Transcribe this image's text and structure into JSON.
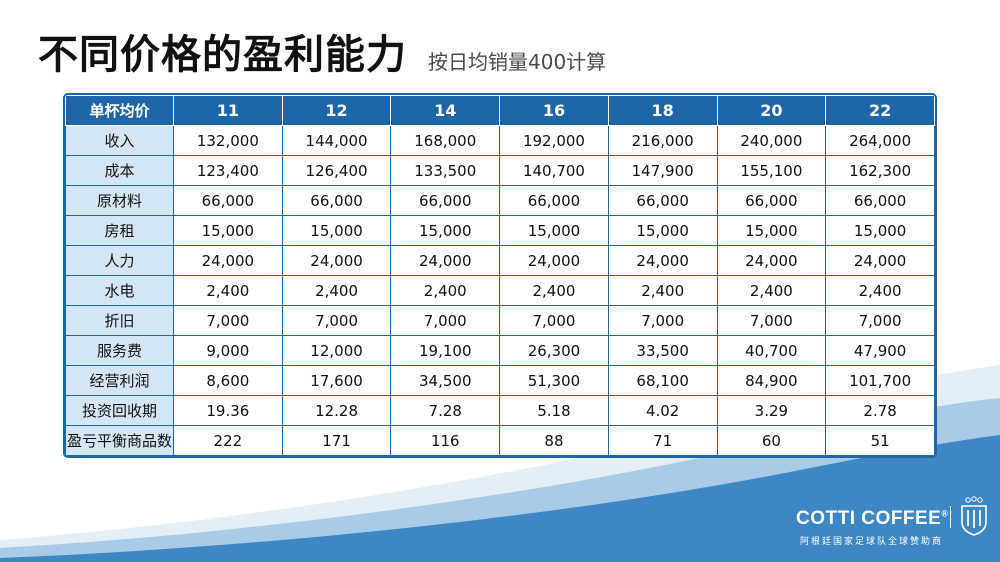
{
  "title": "不同价格的盈利能力",
  "subtitle": "按日均销量400计算",
  "table": {
    "corner": "单杯均价",
    "columns": [
      "11",
      "12",
      "14",
      "16",
      "18",
      "20",
      "22"
    ],
    "rows": [
      {
        "label": "收入",
        "values": [
          "132,000",
          "144,000",
          "168,000",
          "192,000",
          "216,000",
          "240,000",
          "264,000"
        ]
      },
      {
        "label": "成本",
        "values": [
          "123,400",
          "126,400",
          "133,500",
          "140,700",
          "147,900",
          "155,100",
          "162,300"
        ]
      },
      {
        "label": "原材料",
        "values": [
          "66,000",
          "66,000",
          "66,000",
          "66,000",
          "66,000",
          "66,000",
          "66,000"
        ]
      },
      {
        "label": "房租",
        "values": [
          "15,000",
          "15,000",
          "15,000",
          "15,000",
          "15,000",
          "15,000",
          "15,000"
        ]
      },
      {
        "label": "人力",
        "values": [
          "24,000",
          "24,000",
          "24,000",
          "24,000",
          "24,000",
          "24,000",
          "24,000"
        ]
      },
      {
        "label": "水电",
        "values": [
          "2,400",
          "2,400",
          "2,400",
          "2,400",
          "2,400",
          "2,400",
          "2,400"
        ]
      },
      {
        "label": "折旧",
        "values": [
          "7,000",
          "7,000",
          "7,000",
          "7,000",
          "7,000",
          "7,000",
          "7,000"
        ]
      },
      {
        "label": "服务费",
        "values": [
          "9,000",
          "12,000",
          "19,100",
          "26,300",
          "33,500",
          "40,700",
          "47,900"
        ]
      },
      {
        "label": "经营利润",
        "values": [
          "8,600",
          "17,600",
          "34,500",
          "51,300",
          "68,100",
          "84,900",
          "101,700"
        ]
      },
      {
        "label": "投资回收期",
        "values": [
          "19.36",
          "12.28",
          "7.28",
          "5.18",
          "4.02",
          "3.29",
          "2.78"
        ]
      },
      {
        "label": "盈亏平衡商品数",
        "values": [
          "222",
          "171",
          "116",
          "88",
          "71",
          "60",
          "51"
        ]
      }
    ]
  },
  "brand": {
    "name": "COTTI COFFEE",
    "mark": "®",
    "tagline": "阿根廷国家足球队全球赞助商",
    "emblem_icon": "afa-crest-icon"
  },
  "colors": {
    "header_blue": "#1d67a8",
    "label_bg": "#d4e6f4",
    "wave_blue": "#3d87c4",
    "wave_light": "#a9cbe8"
  }
}
